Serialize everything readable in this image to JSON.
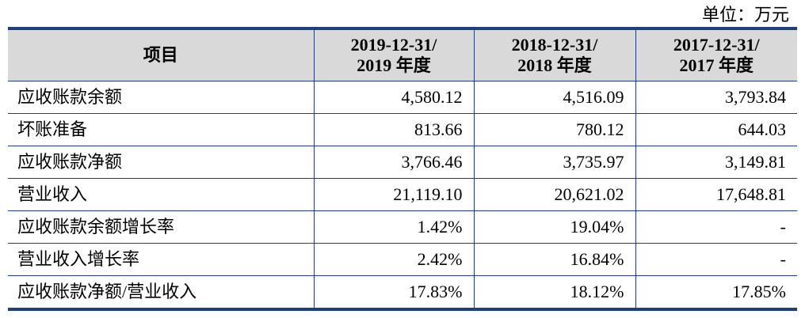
{
  "unit_label": "单位：万元",
  "table": {
    "headers": {
      "item": "项目",
      "periods": [
        {
          "line1": "2019-12-31/",
          "line2": "2019 年度"
        },
        {
          "line1": "2018-12-31/",
          "line2": "2018 年度"
        },
        {
          "line1": "2017-12-31/",
          "line2": "2017 年度"
        }
      ]
    },
    "rows": [
      {
        "label": "应收账款余额",
        "values": [
          "4,580.12",
          "4,516.09",
          "3,793.84"
        ]
      },
      {
        "label": "坏账准备",
        "values": [
          "813.66",
          "780.12",
          "644.03"
        ]
      },
      {
        "label": "应收账款净额",
        "values": [
          "3,766.46",
          "3,735.97",
          "3,149.81"
        ]
      },
      {
        "label": "营业收入",
        "values": [
          "21,119.10",
          "20,621.02",
          "17,648.81"
        ]
      },
      {
        "label": "应收账款余额增长率",
        "values": [
          "1.42%",
          "19.04%",
          "-"
        ]
      },
      {
        "label": "营业收入增长率",
        "values": [
          "2.42%",
          "16.84%",
          "-"
        ]
      },
      {
        "label": "应收账款净额/营业收入",
        "values": [
          "17.83%",
          "18.12%",
          "17.85%"
        ]
      }
    ]
  },
  "colors": {
    "border": "#1f3f7a",
    "header_bg": "#d9d9d9"
  }
}
